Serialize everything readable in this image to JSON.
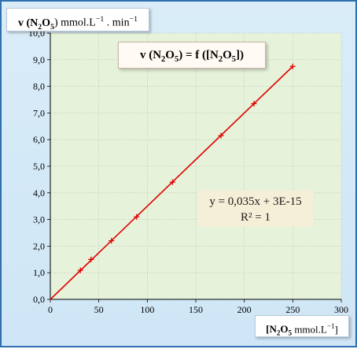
{
  "chart_data": {
    "type": "scatter",
    "title": "v (N2O5) = f ([N2O5])",
    "ylabel": "v (N2O5) mmol.L−1 . min−1",
    "xlabel": "[N2O5 mmol.L−1]",
    "xlim": [
      0,
      300
    ],
    "ylim": [
      0,
      10
    ],
    "xticks": [
      "0",
      "50",
      "100",
      "150",
      "200",
      "250",
      "300"
    ],
    "yticks": [
      "0,0",
      "1,0",
      "2,0",
      "3,0",
      "4,0",
      "5,0",
      "6,0",
      "7,0",
      "8,0",
      "9,0",
      "10,0"
    ],
    "grid": true,
    "series": [
      {
        "x": [
          31,
          42,
          63,
          89,
          126,
          176,
          210,
          250
        ],
        "y": [
          1.09,
          1.5,
          2.2,
          3.1,
          4.4,
          6.15,
          7.35,
          8.75
        ]
      }
    ],
    "trendline": {
      "slope": 0.035,
      "intercept": 0,
      "x_range": [
        0,
        250
      ],
      "equation": "y = 0,035x + 3E-15",
      "r2": "R² = 1"
    },
    "colors": {
      "frame_bg": "#d3e8f7",
      "plot_bg": "#e6f2da",
      "line": "#e00000",
      "marker": "#e00000",
      "grid": "#b0b0b0",
      "eq_bg": "#f6efd8"
    }
  },
  "labels": {
    "y_v": "v (N",
    "y_sub": "2",
    "y_o": "O",
    "y_sub5": "5",
    "y_rest": ") mmol.L",
    "y_sup1": "−1",
    "y_mid": " . min",
    "y_sup2": "−1",
    "t_v": "v (N",
    "t_sub2": "2",
    "t_o": "O",
    "t_sub5": "5",
    "t_mid": ") = f ([N",
    "t_sub2b": "2",
    "t_o2": "O",
    "t_sub5b": "5",
    "t_end": "])",
    "x_a": "[N",
    "x_sub2": "2",
    "x_o": "O",
    "x_sub5": "5",
    "x_rest": " mmol.L",
    "x_sup": "−1",
    "x_end": "]"
  }
}
